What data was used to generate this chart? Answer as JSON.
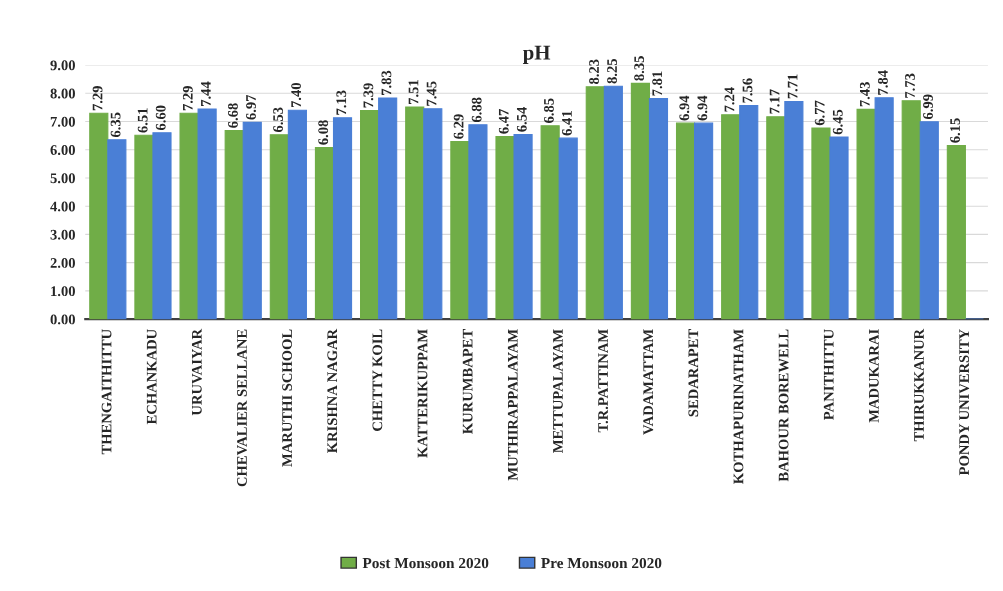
{
  "chart_data": {
    "type": "bar",
    "title": "pH",
    "categories": [
      "THENGAITHITTU",
      "ECHANKADU",
      "URUVAIYAR",
      "CHEVALIER SELLANE",
      "MARUTHI SCHOOL",
      "KRISHNA NAGAR",
      "CHETTY KOIL",
      "KATTERIKUPPAM",
      "KURUMBAPET",
      "MUTHIRAPPALAYAM",
      "METTUPALAYAM",
      "T.R.PATTINAM",
      "VADAMATTAM",
      "SEDARAPET",
      "KOTHAPURINATHAM",
      "BAHOUR BOREWELL",
      "PANITHITTU",
      "MADUKARAI",
      "THIRUKKANUR",
      "PONDY UNIVERSITY"
    ],
    "series": [
      {
        "name": "Post Monsoon 2020",
        "color": "#70ad47",
        "values": [
          7.29,
          6.51,
          7.29,
          6.68,
          6.53,
          6.08,
          7.39,
          7.51,
          6.29,
          6.47,
          6.85,
          8.23,
          8.35,
          6.94,
          7.24,
          7.17,
          6.77,
          7.43,
          7.73,
          6.15
        ],
        "value_labels": [
          "7.29",
          "6.51",
          "7.29",
          "6.68",
          "6.53",
          "6.08",
          "7.39",
          "7.51",
          "6.29",
          "6.47",
          "6.85",
          "8.23",
          "8.35",
          "6.94",
          "7.24",
          "7.17",
          "6.77",
          "7.43",
          "7.73",
          "6.15"
        ]
      },
      {
        "name": "Pre Monsoon 2020",
        "color": "#4a7fd6",
        "values": [
          6.35,
          6.6,
          7.44,
          6.97,
          7.4,
          7.13,
          7.83,
          7.45,
          6.88,
          6.54,
          6.41,
          8.25,
          7.81,
          6.94,
          7.56,
          7.71,
          6.45,
          7.84,
          6.99,
          0
        ],
        "value_labels": [
          "6.35",
          "6.60",
          "7.44",
          "6.97",
          "7.40",
          "7.13",
          "7.83",
          "7.45",
          "6.88",
          "6.54",
          "6.41",
          "8.25",
          "7.81",
          "6.94",
          "7.56",
          "7.71",
          "6.45",
          "7.84",
          "6.99",
          null
        ]
      }
    ],
    "ylim": [
      0,
      9
    ],
    "yticks": [
      {
        "value": 0,
        "label": "0.00"
      },
      {
        "value": 1,
        "label": "1.00"
      },
      {
        "value": 2,
        "label": "2.00"
      },
      {
        "value": 3,
        "label": "3.00"
      },
      {
        "value": 4,
        "label": "4.00"
      },
      {
        "value": 5,
        "label": "5.00"
      },
      {
        "value": 6,
        "label": "6.00"
      },
      {
        "value": 7,
        "label": "7.00"
      },
      {
        "value": 8,
        "label": "8.00"
      },
      {
        "value": 9,
        "label": "9.00"
      }
    ],
    "grid": "y",
    "legend": "bottom"
  }
}
